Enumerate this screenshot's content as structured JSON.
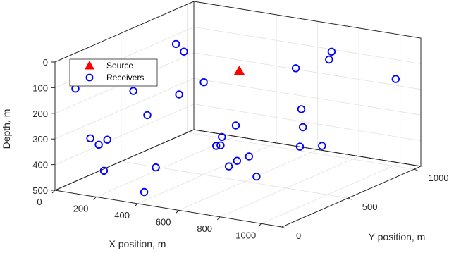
{
  "chart_data": {
    "type": "scatter",
    "xlabel": "X position, m",
    "ylabel": "Y position, m",
    "zlabel": "Depth, m",
    "xlim": [
      0,
      1100
    ],
    "ylim": [
      0,
      1050
    ],
    "zlim": [
      0,
      500
    ],
    "z_reversed": true,
    "xticks": [
      0,
      200,
      400,
      600,
      800,
      1000
    ],
    "yticks": [
      0,
      500,
      1000
    ],
    "zticks": [
      0,
      100,
      200,
      300,
      400,
      500
    ],
    "xtick_labels": [
      "0",
      "200",
      "400",
      "600",
      "800",
      "1000"
    ],
    "ytick_labels": [
      "0",
      "500",
      "1000"
    ],
    "ztick_labels": [
      "0",
      "100",
      "200",
      "300",
      "400",
      "500"
    ],
    "grid": true,
    "legend_placement": "top-left",
    "legend": [
      {
        "label": "Source",
        "marker": "triangle",
        "color": "#ff0000"
      },
      {
        "label": "Receivers",
        "marker": "circle",
        "color": "#0000ff"
      }
    ],
    "series": [
      {
        "name": "Source",
        "points": [
          [
            560,
            520,
            80
          ]
        ]
      },
      {
        "name": "Receivers",
        "points": [
          [
            140,
            170,
            30
          ],
          [
            240,
            540,
            20
          ],
          [
            330,
            460,
            20
          ],
          [
            530,
            540,
            300
          ],
          [
            80,
            30,
            100
          ],
          [
            420,
            470,
            130
          ],
          [
            450,
            560,
            360
          ],
          [
            620,
            500,
            400
          ],
          [
            630,
            880,
            300
          ],
          [
            740,
            720,
            320
          ],
          [
            200,
            280,
            150
          ],
          [
            590,
            900,
            150
          ],
          [
            770,
            890,
            60
          ],
          [
            180,
            50,
            310
          ],
          [
            170,
            130,
            310
          ],
          [
            650,
            300,
            390
          ],
          [
            700,
            760,
            410
          ],
          [
            300,
            230,
            220
          ],
          [
            390,
            330,
            150
          ],
          [
            730,
            880,
            430
          ],
          [
            160,
            120,
            430
          ],
          [
            120,
            80,
            300
          ],
          [
            730,
            80,
            250
          ],
          [
            780,
            160,
            320
          ],
          [
            810,
            260,
            400
          ],
          [
            700,
            160,
            270
          ],
          [
            380,
            170,
            400
          ],
          [
            700,
            980,
            120
          ],
          [
            1010,
            1000,
            160
          ],
          [
            330,
            160,
            500
          ]
        ]
      }
    ]
  }
}
